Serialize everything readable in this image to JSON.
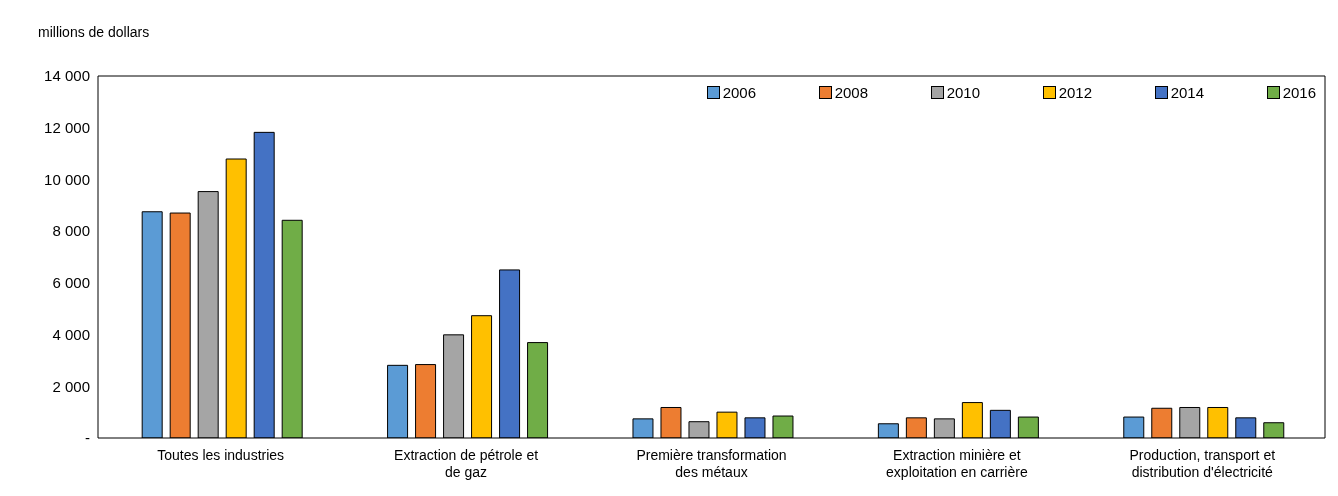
{
  "chart_data": {
    "type": "bar",
    "ylabel": "millions de dollars",
    "categories": [
      "Toutes les industries",
      "Extraction de pétrole et de gaz",
      "Première transformation des métaux",
      "Extraction minière et exploitation en carrière",
      "Production, transport et distribution d'électricité"
    ],
    "series": [
      {
        "name": "2006",
        "color": "#5b9bd5",
        "values": [
          8750,
          2810,
          740,
          550,
          810
        ]
      },
      {
        "name": "2008",
        "color": "#ed7d31",
        "values": [
          8700,
          2840,
          1180,
          780,
          1150
        ]
      },
      {
        "name": "2010",
        "color": "#a5a5a5",
        "values": [
          9530,
          3990,
          630,
          740,
          1180
        ]
      },
      {
        "name": "2012",
        "color": "#ffc000",
        "values": [
          10790,
          4730,
          1000,
          1370,
          1180
        ]
      },
      {
        "name": "2014",
        "color": "#4472c4",
        "values": [
          11820,
          6500,
          780,
          1070,
          780
        ]
      },
      {
        "name": "2016",
        "color": "#70ad47",
        "values": [
          8420,
          3690,
          850,
          810,
          590
        ]
      }
    ],
    "ylim": [
      0,
      14000
    ],
    "yticks": [
      {
        "value": 0,
        "label": "-"
      },
      {
        "value": 2000,
        "label": "2 000"
      },
      {
        "value": 4000,
        "label": "4 000"
      },
      {
        "value": 6000,
        "label": "6 000"
      },
      {
        "value": 8000,
        "label": "8 000"
      },
      {
        "value": 10000,
        "label": "10 000"
      },
      {
        "value": 12000,
        "label": "12 000"
      },
      {
        "value": 14000,
        "label": "14 000"
      }
    ],
    "legend": "top right"
  }
}
